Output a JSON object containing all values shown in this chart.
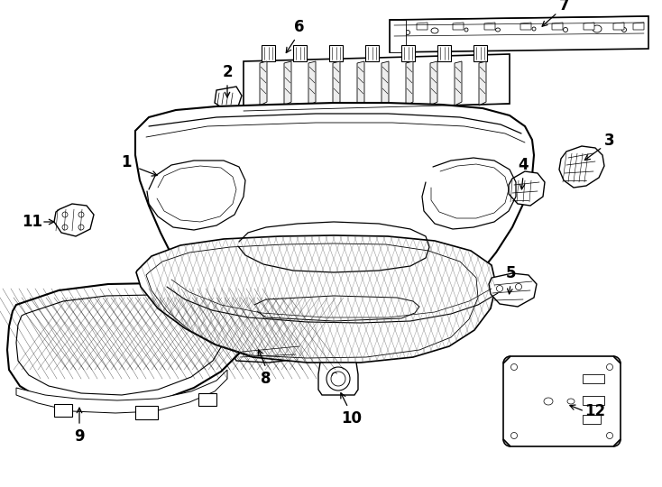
{
  "background_color": "#ffffff",
  "line_color": "#000000",
  "figsize": [
    7.34,
    5.4
  ],
  "dpi": 100,
  "labels": {
    "1": [
      155,
      192,
      175,
      205
    ],
    "2": [
      248,
      88,
      252,
      110
    ],
    "3": [
      665,
      162,
      648,
      178
    ],
    "4": [
      573,
      195,
      570,
      213
    ],
    "5": [
      567,
      318,
      560,
      335
    ],
    "6": [
      330,
      42,
      308,
      62
    ],
    "7": [
      618,
      10,
      598,
      28
    ],
    "8": [
      303,
      415,
      285,
      400
    ],
    "9": [
      90,
      490,
      90,
      472
    ],
    "10": [
      388,
      455,
      375,
      435
    ],
    "11": [
      44,
      248,
      62,
      248
    ],
    "12": [
      648,
      462,
      628,
      455
    ]
  }
}
